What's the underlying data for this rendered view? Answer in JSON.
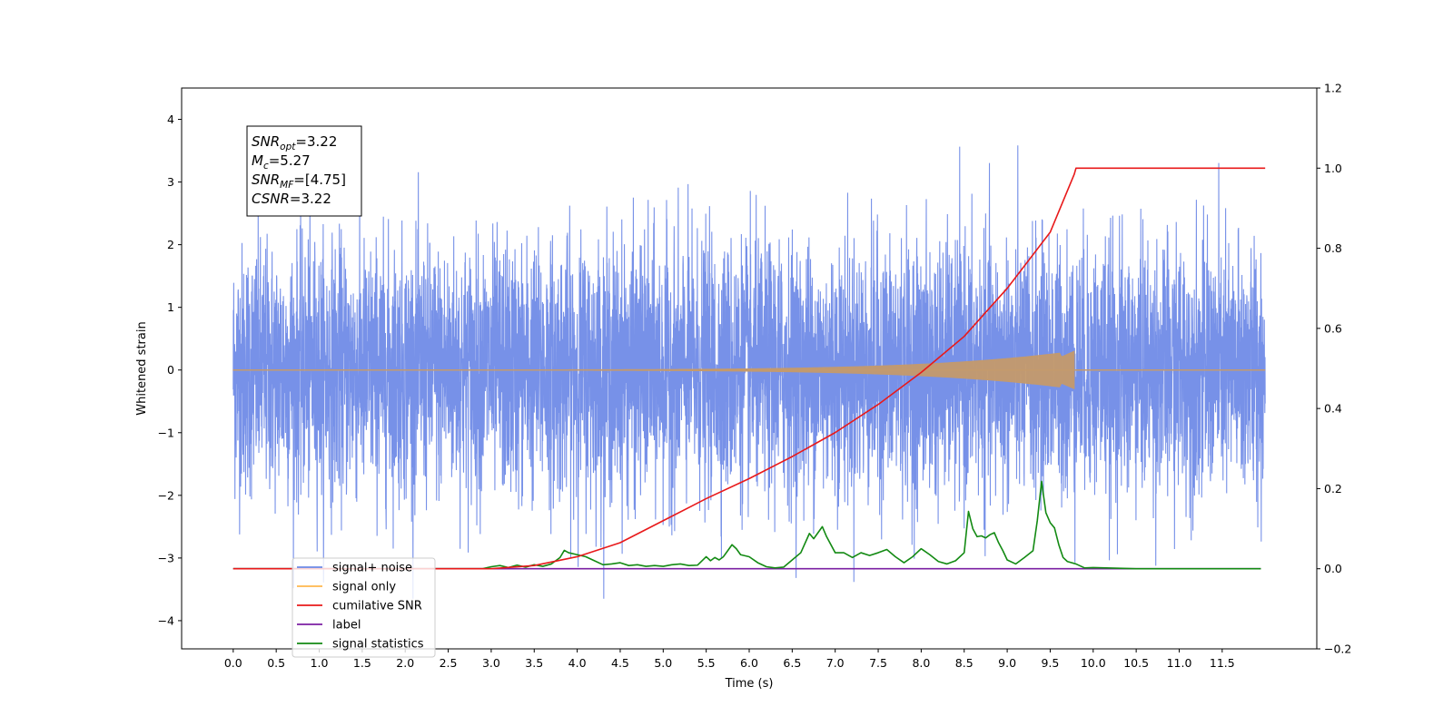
{
  "chart_data": {
    "type": "line",
    "title": "",
    "xlabel": "Time (s)",
    "ylabel": "Whitened strain",
    "xlim": [
      -0.6,
      12.6
    ],
    "ylim": [
      -4.45,
      4.5
    ],
    "y2lim": [
      -0.2,
      1.2
    ],
    "x_ticks": [
      "0.0",
      "0.5",
      "1.0",
      "1.5",
      "2.0",
      "2.5",
      "3.0",
      "3.5",
      "4.0",
      "4.5",
      "5.0",
      "5.5",
      "6.0",
      "6.5",
      "7.0",
      "7.5",
      "8.0",
      "8.5",
      "9.0",
      "9.5",
      "10.0",
      "10.5",
      "11.0",
      "11.5"
    ],
    "y_ticks": [
      "4",
      "3",
      "2",
      "1",
      "0",
      "−1",
      "−2",
      "−3",
      "−4"
    ],
    "y2_ticks": [
      "1.2",
      "1.0",
      "0.8",
      "0.6",
      "0.4",
      "0.2",
      "0.0",
      "−0.2"
    ],
    "legend_position": "lower-left",
    "annotation": {
      "lines": [
        {
          "main": "SNR",
          "sub": "opt",
          "value": "=3.22"
        },
        {
          "main": "M",
          "sub": "c",
          "value": "=5.27"
        },
        {
          "main": "SNR",
          "sub": "MF",
          "value": "=[4.75]"
        },
        {
          "main": "CSNR",
          "sub": "",
          "value": "=3.22"
        }
      ]
    },
    "series": [
      {
        "name": "signal+ noise",
        "color": "#6b88e6",
        "axis": "left",
        "description_range": [
          -3.65,
          4.1
        ],
        "x_range": [
          0.0,
          12.0
        ],
        "noise_std": 1.0
      },
      {
        "name": "signal only",
        "color": "#ffb74d",
        "axis": "left",
        "chirp_end": 9.78,
        "peak_amplitude": 0.3
      },
      {
        "name": "cumilative SNR",
        "color": "#e8191a",
        "axis": "right",
        "x": [
          0,
          3.0,
          3.5,
          4.0,
          4.5,
          5.0,
          5.5,
          6.0,
          6.5,
          7.0,
          7.5,
          8.0,
          8.5,
          9.0,
          9.5,
          9.78,
          9.8,
          12.0
        ],
        "y": [
          0.0,
          0.0,
          0.008,
          0.03,
          0.065,
          0.12,
          0.175,
          0.225,
          0.28,
          0.34,
          0.41,
          0.49,
          0.58,
          0.7,
          0.84,
          0.985,
          1.0,
          1.0
        ]
      },
      {
        "name": "label",
        "color": "#7b1fa2",
        "axis": "right",
        "x": [
          0,
          11.95
        ],
        "y": [
          0.0,
          0.0
        ]
      },
      {
        "name": "signal statistics",
        "color": "#138a13",
        "axis": "right",
        "x": [
          0,
          2.9,
          3.0,
          3.1,
          3.2,
          3.3,
          3.4,
          3.5,
          3.6,
          3.7,
          3.8,
          3.85,
          3.9,
          4.0,
          4.1,
          4.2,
          4.3,
          4.4,
          4.5,
          4.6,
          4.7,
          4.8,
          4.9,
          5.0,
          5.1,
          5.2,
          5.3,
          5.4,
          5.5,
          5.55,
          5.6,
          5.65,
          5.7,
          5.75,
          5.8,
          5.85,
          5.9,
          6.0,
          6.1,
          6.2,
          6.3,
          6.4,
          6.5,
          6.6,
          6.7,
          6.75,
          6.8,
          6.85,
          6.9,
          7.0,
          7.1,
          7.2,
          7.3,
          7.4,
          7.5,
          7.6,
          7.7,
          7.8,
          7.9,
          8.0,
          8.1,
          8.2,
          8.3,
          8.4,
          8.5,
          8.55,
          8.6,
          8.65,
          8.7,
          8.75,
          8.8,
          8.85,
          8.9,
          8.95,
          9.0,
          9.1,
          9.2,
          9.3,
          9.35,
          9.4,
          9.45,
          9.5,
          9.55,
          9.6,
          9.65,
          9.7,
          9.8,
          9.9,
          10.0,
          10.5,
          11.0,
          11.95
        ],
        "y": [
          0.0,
          0.0,
          0.005,
          0.008,
          0.003,
          0.009,
          0.004,
          0.01,
          0.006,
          0.012,
          0.028,
          0.046,
          0.04,
          0.035,
          0.03,
          0.02,
          0.01,
          0.012,
          0.015,
          0.008,
          0.01,
          0.006,
          0.008,
          0.006,
          0.01,
          0.012,
          0.008,
          0.009,
          0.03,
          0.02,
          0.028,
          0.022,
          0.03,
          0.045,
          0.06,
          0.05,
          0.035,
          0.03,
          0.015,
          0.005,
          0.002,
          0.004,
          0.022,
          0.04,
          0.088,
          0.075,
          0.09,
          0.105,
          0.08,
          0.04,
          0.04,
          0.028,
          0.04,
          0.033,
          0.04,
          0.048,
          0.03,
          0.015,
          0.03,
          0.05,
          0.035,
          0.018,
          0.012,
          0.02,
          0.04,
          0.143,
          0.1,
          0.08,
          0.082,
          0.077,
          0.085,
          0.09,
          0.065,
          0.045,
          0.022,
          0.012,
          0.028,
          0.045,
          0.12,
          0.218,
          0.14,
          0.115,
          0.102,
          0.06,
          0.028,
          0.018,
          0.012,
          0.002,
          0.003,
          0.0,
          0.0,
          0.0
        ]
      }
    ]
  }
}
